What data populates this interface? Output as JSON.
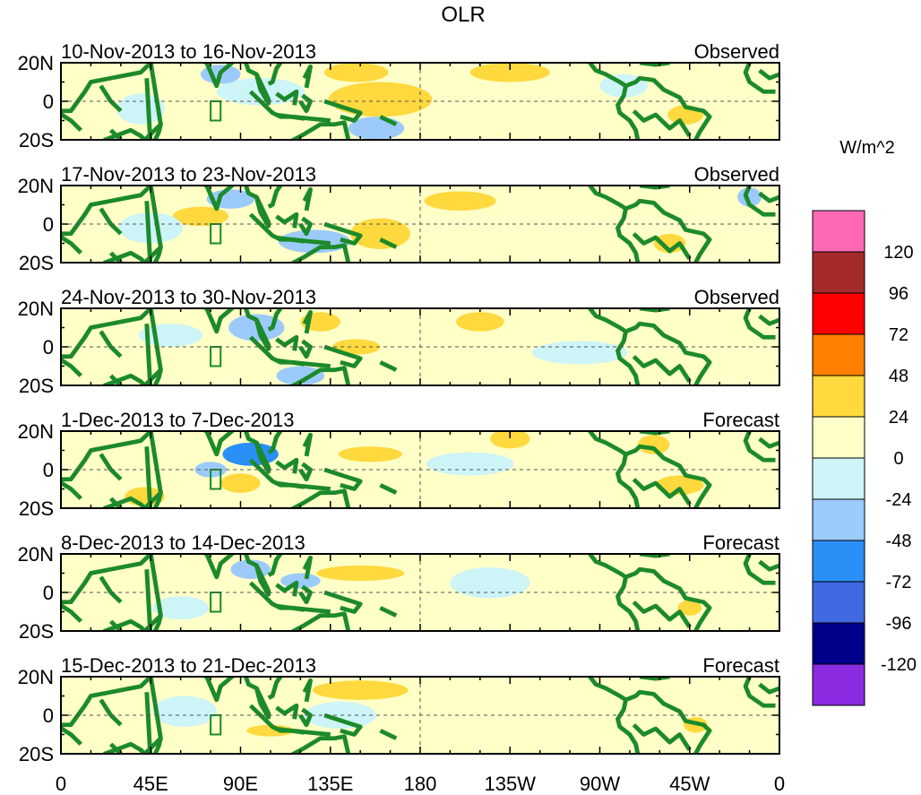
{
  "chart_data": {
    "type": "heatmap",
    "title": "OLR",
    "units_label": "W/m^2",
    "panels": [
      {
        "period": "10-Nov-2013 to 16-Nov-2013",
        "kind": "Observed"
      },
      {
        "period": "17-Nov-2013 to 23-Nov-2013",
        "kind": "Observed"
      },
      {
        "period": "24-Nov-2013 to 30-Nov-2013",
        "kind": "Observed"
      },
      {
        "period": "1-Dec-2013 to 7-Dec-2013",
        "kind": "Forecast"
      },
      {
        "period": "8-Dec-2013 to 14-Dec-2013",
        "kind": "Forecast"
      },
      {
        "period": "15-Dec-2013 to 21-Dec-2013",
        "kind": "Forecast"
      }
    ],
    "lat_ticks": [
      "20N",
      "0",
      "20S"
    ],
    "lat_range": [
      -20,
      20
    ],
    "lon_ticks": [
      "0",
      "45E",
      "90E",
      "135E",
      "180",
      "135W",
      "90W",
      "45W",
      "0"
    ],
    "lon_range": [
      0,
      360
    ],
    "colorbar": {
      "colors": [
        "#ff69b4",
        "#a52a2a",
        "#ff0000",
        "#ff7f00",
        "#ffd93d",
        "#ffffc8",
        "#cdf4f7",
        "#9ccbfb",
        "#2a8ff7",
        "#4169e1",
        "#00008b",
        "#8a2be2"
      ],
      "labels": [
        "120",
        "96",
        "72",
        "48",
        "24",
        "0",
        "-24",
        "-48",
        "-72",
        "-96",
        "-120"
      ]
    },
    "anomaly_blobs": [
      [
        {
          "lon": 163,
          "lat": 0,
          "rx": 17,
          "ry": 6,
          "level": 48
        },
        {
          "lon": 160,
          "lat": 1,
          "rx": 26,
          "ry": 9,
          "level": 24
        },
        {
          "lon": 148,
          "lat": 15,
          "rx": 16,
          "ry": 5,
          "level": 24
        },
        {
          "lon": 100,
          "lat": 5,
          "rx": 22,
          "ry": 7,
          "level": -24
        },
        {
          "lon": 80,
          "lat": 14,
          "rx": 10,
          "ry": 5,
          "level": -48
        },
        {
          "lon": 158,
          "lat": -14,
          "rx": 14,
          "ry": 6,
          "level": -48
        },
        {
          "lon": 40,
          "lat": -4,
          "rx": 12,
          "ry": 8,
          "level": -24
        },
        {
          "lon": 225,
          "lat": 15,
          "rx": 20,
          "ry": 5,
          "level": 24
        },
        {
          "lon": 282,
          "lat": 8,
          "rx": 12,
          "ry": 6,
          "level": -24
        },
        {
          "lon": 313,
          "lat": -7,
          "rx": 9,
          "ry": 5,
          "level": 24
        }
      ],
      [
        {
          "lon": 160,
          "lat": -5,
          "rx": 15,
          "ry": 8,
          "level": 24
        },
        {
          "lon": 127,
          "lat": -9,
          "rx": 18,
          "ry": 6,
          "level": -48
        },
        {
          "lon": 85,
          "lat": 13,
          "rx": 12,
          "ry": 5,
          "level": -48
        },
        {
          "lon": 70,
          "lat": 4,
          "rx": 14,
          "ry": 5,
          "level": 24
        },
        {
          "lon": 200,
          "lat": 12,
          "rx": 18,
          "ry": 5,
          "level": 24
        },
        {
          "lon": 345,
          "lat": 14,
          "rx": 6,
          "ry": 5,
          "level": -48
        },
        {
          "lon": 305,
          "lat": -10,
          "rx": 8,
          "ry": 5,
          "level": 24
        },
        {
          "lon": 45,
          "lat": -2,
          "rx": 16,
          "ry": 8,
          "level": -24
        }
      ],
      [
        {
          "lon": 98,
          "lat": 10,
          "rx": 14,
          "ry": 7,
          "level": -48
        },
        {
          "lon": 120,
          "lat": -15,
          "rx": 12,
          "ry": 5,
          "level": -48
        },
        {
          "lon": 148,
          "lat": 0,
          "rx": 12,
          "ry": 4,
          "level": 24
        },
        {
          "lon": 130,
          "lat": 13,
          "rx": 10,
          "ry": 5,
          "level": 24
        },
        {
          "lon": 210,
          "lat": 13,
          "rx": 12,
          "ry": 5,
          "level": 24
        },
        {
          "lon": 260,
          "lat": -3,
          "rx": 24,
          "ry": 6,
          "level": -24
        },
        {
          "lon": 55,
          "lat": 6,
          "rx": 16,
          "ry": 6,
          "level": -24
        }
      ],
      [
        {
          "lon": 95,
          "lat": 8,
          "rx": 14,
          "ry": 6,
          "level": -72
        },
        {
          "lon": 75,
          "lat": 0,
          "rx": 8,
          "ry": 4,
          "level": -48
        },
        {
          "lon": 90,
          "lat": -7,
          "rx": 10,
          "ry": 5,
          "level": 24
        },
        {
          "lon": 155,
          "lat": 8,
          "rx": 16,
          "ry": 4,
          "level": 24
        },
        {
          "lon": 225,
          "lat": 16,
          "rx": 10,
          "ry": 5,
          "level": 24
        },
        {
          "lon": 297,
          "lat": 13,
          "rx": 8,
          "ry": 5,
          "level": 24
        },
        {
          "lon": 310,
          "lat": -8,
          "rx": 12,
          "ry": 5,
          "level": 24
        },
        {
          "lon": 42,
          "lat": -14,
          "rx": 10,
          "ry": 5,
          "level": 24
        },
        {
          "lon": 205,
          "lat": 3,
          "rx": 22,
          "ry": 6,
          "level": -24
        }
      ],
      [
        {
          "lon": 95,
          "lat": 12,
          "rx": 10,
          "ry": 5,
          "level": -48
        },
        {
          "lon": 120,
          "lat": 6,
          "rx": 10,
          "ry": 4,
          "level": -48
        },
        {
          "lon": 150,
          "lat": 10,
          "rx": 22,
          "ry": 4,
          "level": 24
        },
        {
          "lon": 315,
          "lat": -8,
          "rx": 6,
          "ry": 4,
          "level": 24
        },
        {
          "lon": 215,
          "lat": 5,
          "rx": 20,
          "ry": 8,
          "level": -24
        },
        {
          "lon": 60,
          "lat": -8,
          "rx": 14,
          "ry": 6,
          "level": -24
        }
      ],
      [
        {
          "lon": 150,
          "lat": 13,
          "rx": 24,
          "ry": 5,
          "level": 24
        },
        {
          "lon": 143,
          "lat": -1,
          "rx": 9,
          "ry": 4,
          "level": -48
        },
        {
          "lon": 140,
          "lat": 0,
          "rx": 18,
          "ry": 7,
          "level": -24
        },
        {
          "lon": 105,
          "lat": -8,
          "rx": 12,
          "ry": 3,
          "level": 24
        },
        {
          "lon": 318,
          "lat": -5,
          "rx": 6,
          "ry": 4,
          "level": 24
        },
        {
          "lon": 62,
          "lat": 2,
          "rx": 16,
          "ry": 8,
          "level": -24
        }
      ]
    ]
  }
}
